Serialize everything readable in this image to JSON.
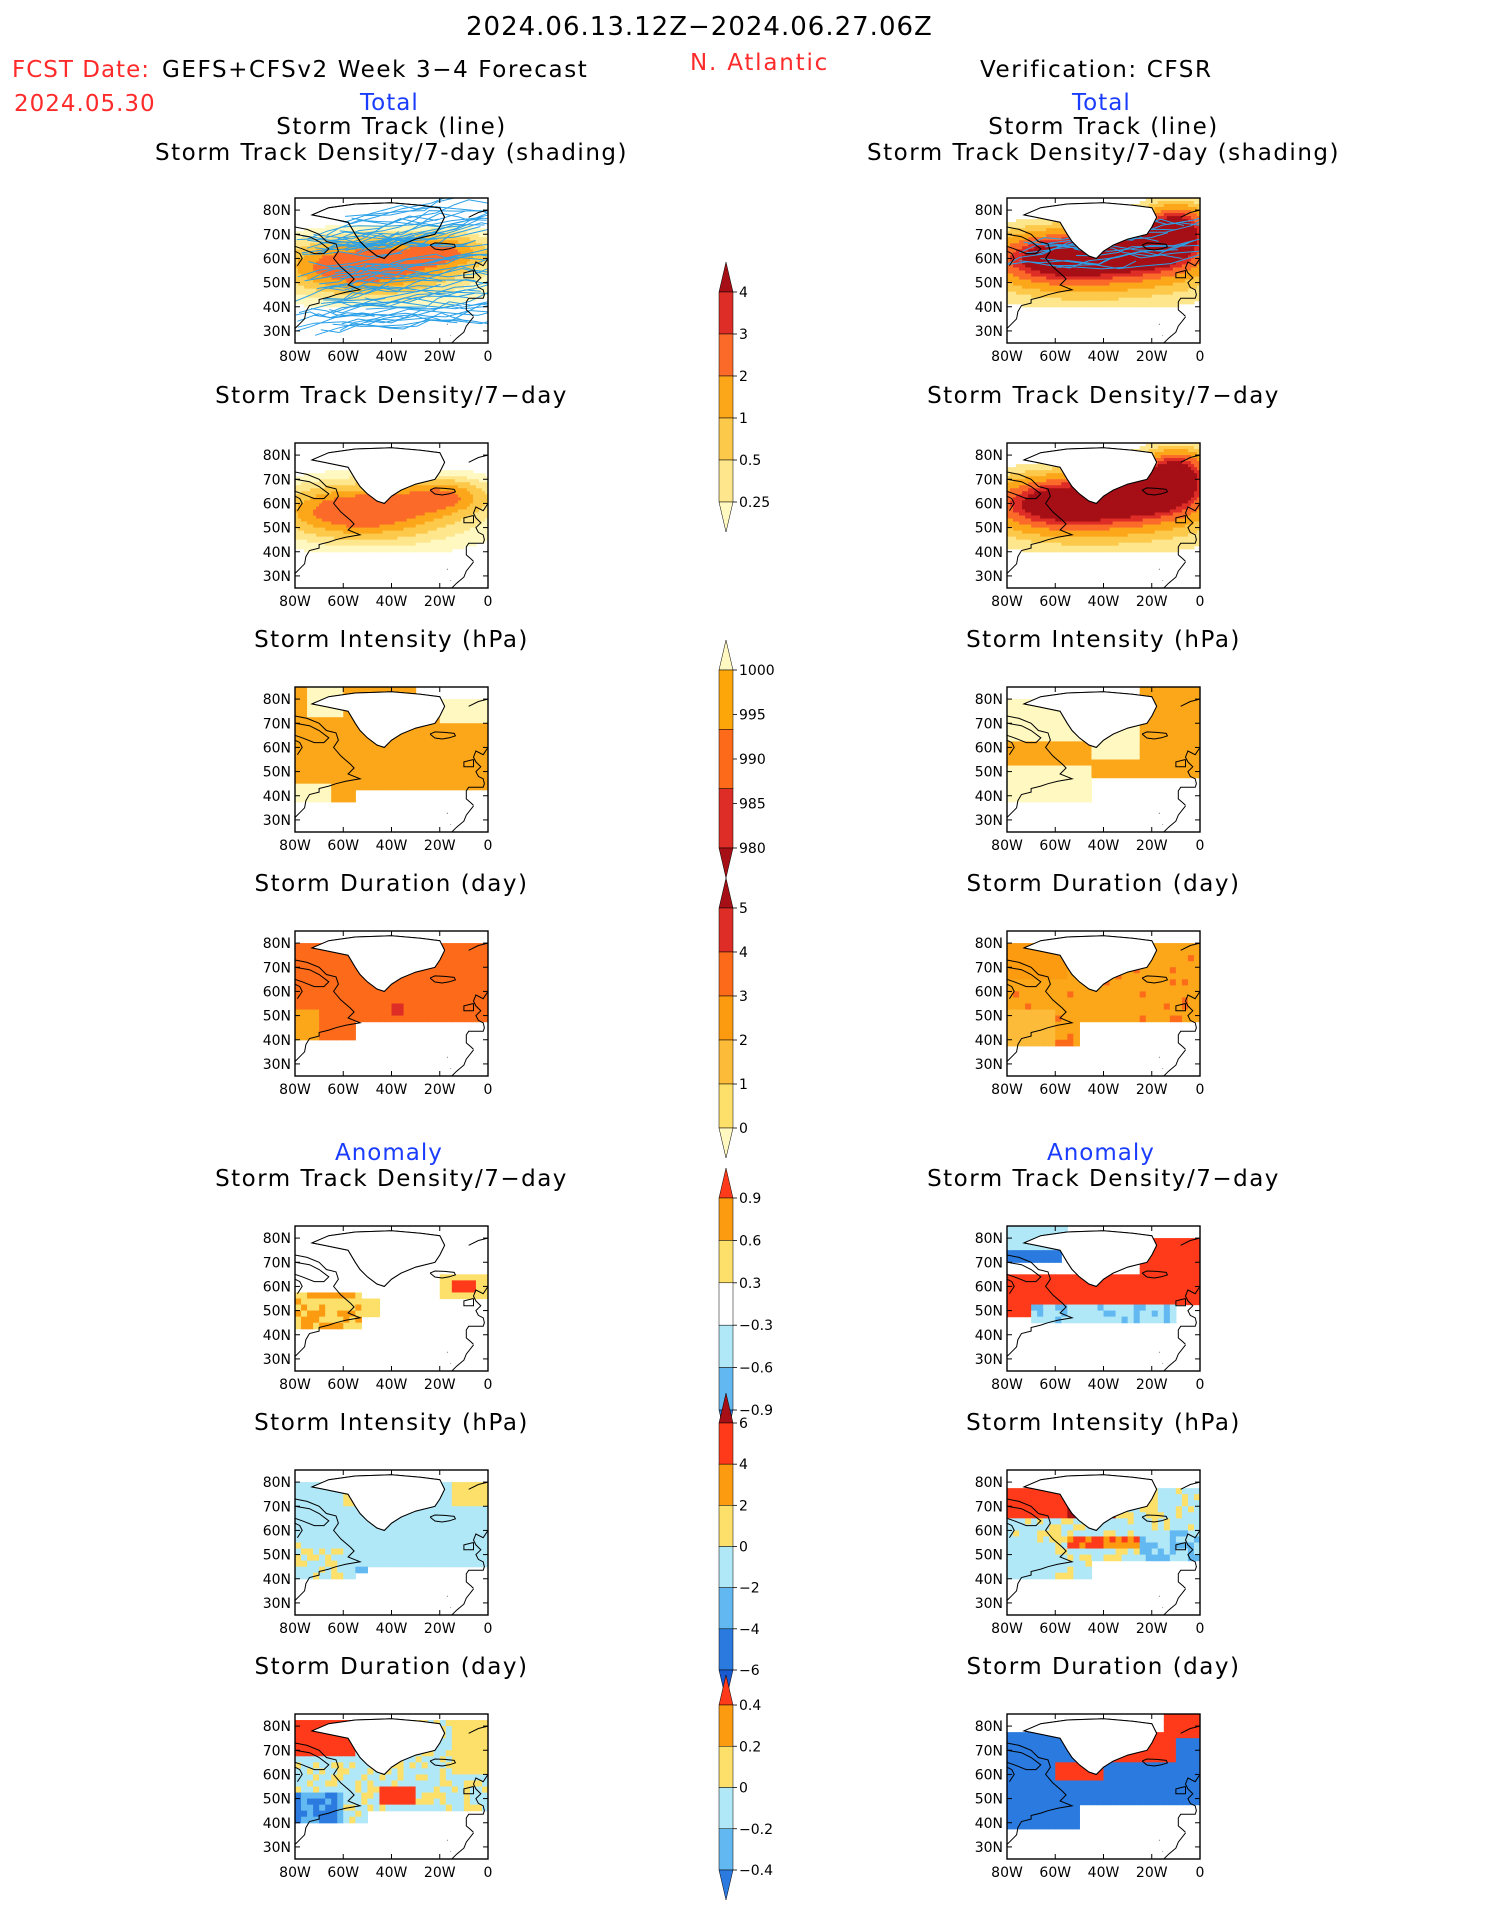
{
  "header": {
    "period": "2024.06.13.12Z−2024.06.27.06Z",
    "fcst_label": "FCST Date:",
    "fcst_model": "GEFS+CFSv2 Week 3−4 Forecast",
    "fcst_date": "2024.05.30",
    "region": "N. Atlantic",
    "verification": "Verification: CFSR",
    "total_left": "Total",
    "total_right": "Total",
    "anomaly_left": "Anomaly",
    "anomaly_right": "Anomaly"
  },
  "colors": {
    "red_text": "#ff2a2a",
    "blue_text": "#1a3cff",
    "black": "#000000",
    "track_line": "#2aa0e8"
  },
  "map_axes": {
    "lat_ticks": [
      "80N",
      "70N",
      "60N",
      "50N",
      "40N",
      "30N"
    ],
    "lon_ticks": [
      "80W",
      "60W",
      "40W",
      "20W",
      "0"
    ]
  },
  "panels": {
    "left": [
      {
        "title1": "Storm Track (line)",
        "title2": "Storm Track Density/7-day (shading)"
      },
      {
        "title1": "Storm Track Density/7−day"
      },
      {
        "title1": "Storm Intensity (hPa)"
      },
      {
        "title1": "Storm Duration (day)"
      },
      {
        "title1": "Storm Track Density/7−day"
      },
      {
        "title1": "Storm Intensity (hPa)"
      },
      {
        "title1": "Storm Duration (day)"
      }
    ],
    "right": [
      {
        "title1": "Storm Track (line)",
        "title2": "Storm Track Density/7-day (shading)"
      },
      {
        "title1": "Storm Track Density/7−day"
      },
      {
        "title1": "Storm Intensity (hPa)"
      },
      {
        "title1": "Storm Duration (day)"
      },
      {
        "title1": "Storm Track Density/7−day"
      },
      {
        "title1": "Storm Intensity (hPa)"
      },
      {
        "title1": "Storm Duration (day)"
      }
    ]
  },
  "colorbars": [
    {
      "name": "track-density-total",
      "labels": [
        "4",
        "3",
        "2",
        "1",
        "0.5",
        "0.25"
      ],
      "colors": [
        "#a50f15",
        "#de2d26",
        "#fc6a2a",
        "#fca61a",
        "#fdc94a",
        "#fde68c",
        "#fff8c0"
      ]
    },
    {
      "name": "intensity-total",
      "labels": [
        "1000",
        "995",
        "990",
        "985",
        "980"
      ],
      "colors": [
        "#fff8c0",
        "#fda60a",
        "#fc6a1a",
        "#de2d26",
        "#a50f15"
      ]
    },
    {
      "name": "duration-total",
      "labels": [
        "5",
        "4",
        "3",
        "2",
        "1",
        "0"
      ],
      "colors": [
        "#a50f15",
        "#de2d26",
        "#fc6a1a",
        "#fc9a10",
        "#fdbb3a",
        "#fde06a",
        "#fff8c0"
      ]
    },
    {
      "name": "track-density-anom",
      "labels": [
        "0.9",
        "0.6",
        "0.3",
        "−0.3",
        "−0.6",
        "−0.9"
      ],
      "colors": [
        "#ff3a1a",
        "#fc9a10",
        "#fde06a",
        "#ffffff",
        "#b0e8f8",
        "#62b8f0",
        "#2a7ae0"
      ]
    },
    {
      "name": "intensity-anom",
      "labels": [
        "6",
        "4",
        "2",
        "0",
        "−2",
        "−4",
        "−6"
      ],
      "colors": [
        "#a50f15",
        "#ff3a1a",
        "#fc9a10",
        "#fde06a",
        "#b0e8f8",
        "#62b8f0",
        "#2a7ae0",
        "#1a5ad0"
      ]
    },
    {
      "name": "duration-anom",
      "labels": [
        "0.4",
        "0.2",
        "0",
        "−0.2",
        "−0.4"
      ],
      "colors": [
        "#ff3a1a",
        "#fc9a10",
        "#fde06a",
        "#b0e8f8",
        "#62b8f0",
        "#2a7ae0"
      ]
    }
  ],
  "chart_data": {
    "type": "heatmap",
    "title": "2024.06.13.12Z−2024.06.27.06Z",
    "region": "N. Atlantic",
    "x_ticks": [
      "80W",
      "60W",
      "40W",
      "20W",
      "0"
    ],
    "y_ticks": [
      "80N",
      "70N",
      "60N",
      "50N",
      "40N",
      "30N"
    ],
    "series": [
      {
        "name": "GEFS+CFSv2 Week 3−4 Forecast",
        "panels": [
          "Storm Track (line)",
          "Storm Track Density/7-day (shading)",
          "Storm Track Density/7−day",
          "Storm Intensity (hPa)",
          "Storm Duration (day)"
        ]
      },
      {
        "name": "Verification: CFSR",
        "panels": [
          "Storm Track (line)",
          "Storm Track Density/7-day (shading)",
          "Storm Track Density/7−day",
          "Storm Intensity (hPa)",
          "Storm Duration (day)"
        ]
      }
    ]
  }
}
